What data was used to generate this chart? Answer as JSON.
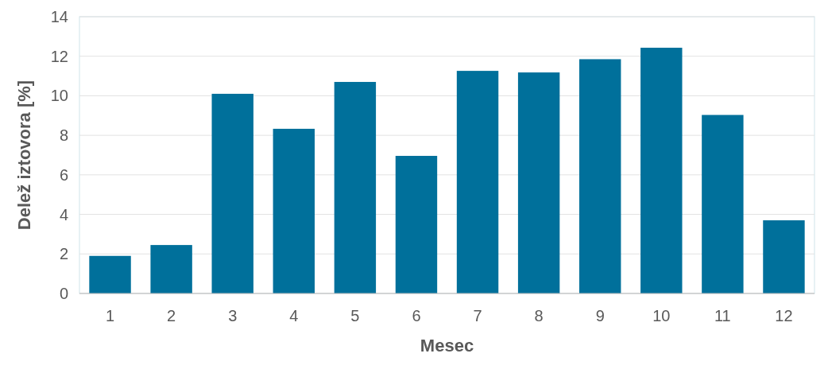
{
  "chart_data": {
    "type": "bar",
    "xlabel": "Mesec",
    "ylabel": "Delež iztovora [%]",
    "categories": [
      "1",
      "2",
      "3",
      "4",
      "5",
      "6",
      "7",
      "8",
      "9",
      "10",
      "11",
      "12"
    ],
    "values": [
      1.9,
      2.45,
      10.1,
      8.33,
      10.7,
      6.96,
      11.26,
      11.18,
      11.85,
      12.43,
      9.03,
      3.7
    ],
    "color": "#00709b",
    "ylim": [
      0,
      14
    ],
    "yticks": [
      0,
      2,
      4,
      6,
      8,
      10,
      12,
      14
    ],
    "grid": "y"
  }
}
